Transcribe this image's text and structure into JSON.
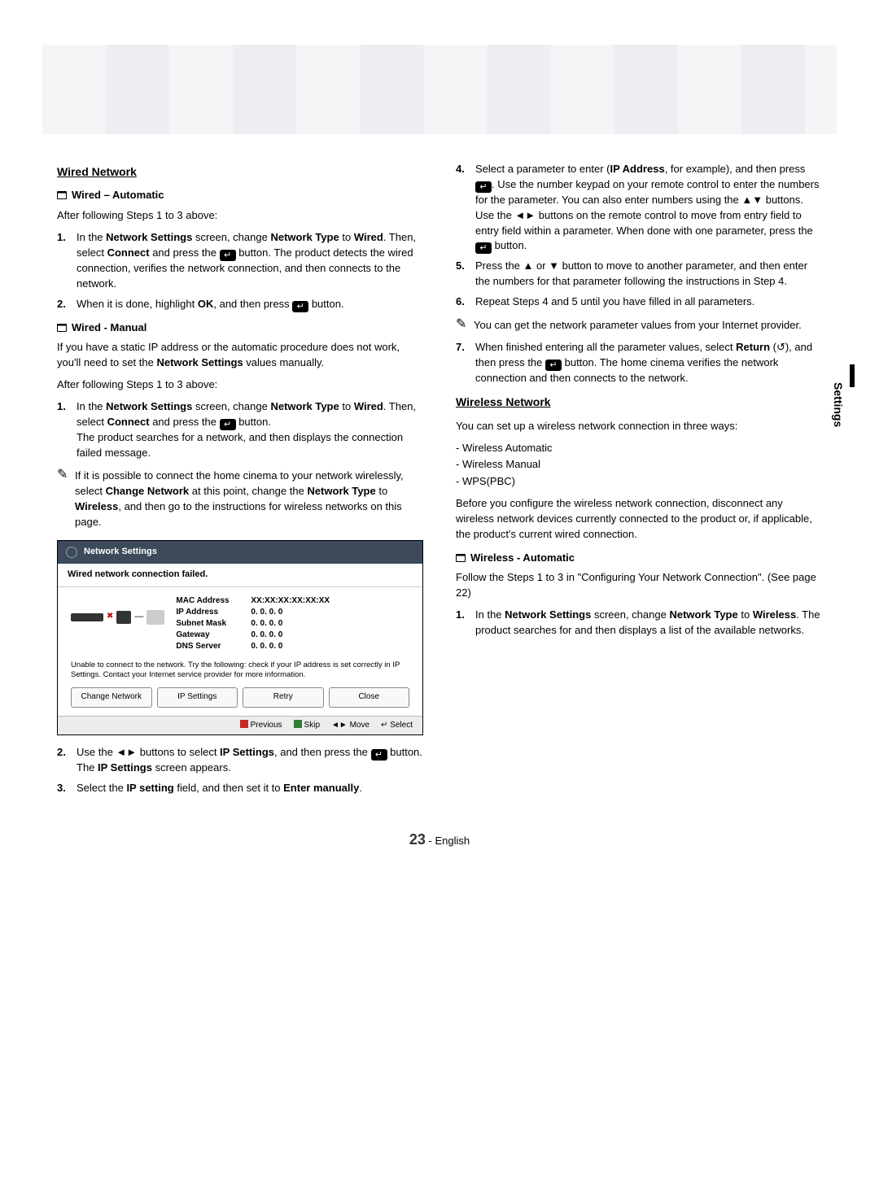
{
  "page": {
    "number": "23",
    "lang": "English"
  },
  "sideTab": "Settings",
  "left": {
    "wiredNetwork": "Wired Network",
    "wiredAuto": "Wired – Automatic",
    "autoIntro": "After following Steps 1 to 3 above:",
    "autoStep1_a": "In the ",
    "autoStep1_ns": "Network Settings",
    "autoStep1_b": " screen, change ",
    "autoStep1_nt": "Network Type",
    "autoStep1_c": " to ",
    "autoStep1_wired": "Wired",
    "autoStep1_d": ". Then, select ",
    "autoStep1_connect": "Connect",
    "autoStep1_e": " and press the ",
    "autoStep1_f": " button. The product detects the wired connection, verifies the network connection, and then connects to the network.",
    "autoStep2_a": "When it is done, highlight ",
    "autoStep2_ok": "OK",
    "autoStep2_b": ", and then press ",
    "autoStep2_c": " button.",
    "wiredManual": "Wired - Manual",
    "manIntro_a": "If you have a static IP address or the automatic procedure does not work, you'll need to set the ",
    "manIntro_ns": "Network Settings",
    "manIntro_b": " values manually.",
    "manFollow": "After following Steps 1 to 3 above:",
    "manStep1_a": "In the ",
    "manStep1_ns": "Network Settings",
    "manStep1_b": " screen, change ",
    "manStep1_nt": "Network Type",
    "manStep1_c": " to ",
    "manStep1_wired": "Wired",
    "manStep1_d": ". Then, select ",
    "manStep1_connect": "Connect",
    "manStep1_e": " and press the ",
    "manStep1_f": " button.\nThe product searches for a network, and then displays the connection failed message.",
    "manNote_a": "If it is possible to connect the home cinema to your network wirelessly, select ",
    "manNote_cn": "Change Network",
    "manNote_b": " at this point, change the ",
    "manNote_nt": "Network Type",
    "manNote_c": " to ",
    "manNote_wl": "Wireless",
    "manNote_d": ", and then go to the instructions for wireless networks on this page.",
    "step2_a": "Use the ◄► buttons to select ",
    "step2_ip": "IP Settings",
    "step2_b": ", and then press the ",
    "step2_c": " button. The ",
    "step2_ip2": "IP Settings",
    "step2_d": " screen appears.",
    "step3_a": "Select the ",
    "step3_ipset": "IP setting",
    "step3_b": " field, and then set it to ",
    "step3_em": "Enter manually",
    "step3_c": "."
  },
  "tv": {
    "title": "Network Settings",
    "status": "Wired network connection failed.",
    "rows": {
      "mac_l": "MAC Address",
      "mac_v": "XX:XX:XX:XX:XX:XX",
      "ip_l": "IP Address",
      "ip_v": "0.  0.  0.  0",
      "sm_l": "Subnet Mask",
      "sm_v": "0.  0.  0.  0",
      "gw_l": "Gateway",
      "gw_v": "0.  0.  0.  0",
      "dns_l": "DNS Server",
      "dns_v": "0.  0.  0.  0"
    },
    "msg": "Unable to connect to the network. Try the following: check if your IP address is set correctly in IP Settings. Contact your Internet service provider for more information.",
    "btn1": "Change Network",
    "btn2": "IP Settings",
    "btn3": "Retry",
    "btn4": "Close",
    "foot_prev": "Previous",
    "foot_skip": "Skip",
    "foot_move": "Move",
    "foot_select": "Select"
  },
  "right": {
    "step4_a": "Select a parameter to enter (",
    "step4_ip": "IP Address",
    "step4_b": ", for example), and then press ",
    "step4_c": ". Use the number keypad on your remote control to enter the numbers for the parameter. You can also enter numbers using the ▲▼ buttons. Use the ◄► buttons on the remote control to move from entry field to entry field within a parameter. When done with one parameter, press the ",
    "step4_d": " button.",
    "step5": "Press the ▲ or ▼ button to move to another parameter, and then enter the numbers for that parameter following the instructions in Step 4.",
    "step6": "Repeat Steps 4 and 5 until you have filled in all parameters.",
    "noteR": "You can get the network parameter values from your Internet provider.",
    "step7_a": "When finished entering all the parameter values, select ",
    "step7_ret": "Return",
    "step7_b": " (↺), and then press the ",
    "step7_c": " button. The home cinema verifies the network connection and then connects to the network.",
    "wirelessNetwork": "Wireless Network",
    "wnIntro": "You can set up a wireless network connection in three ways:",
    "wn1": "Wireless Automatic",
    "wn2": "Wireless Manual",
    "wn3": "WPS(PBC)",
    "wnBefore": "Before you configure the wireless network connection, disconnect any wireless network devices currently connected to the product or, if applicable, the product's current wired connection.",
    "wirelessAuto": "Wireless - Automatic",
    "waFollow": "Follow the Steps 1 to 3 in \"Configuring Your Network Connection\". (See page 22)",
    "waStep1_a": "In the ",
    "waStep1_ns": "Network Settings",
    "waStep1_b": " screen, change ",
    "waStep1_nt": "Network Type",
    "waStep1_c": " to ",
    "waStep1_wl": "Wireless",
    "waStep1_d": ". The product searches for and then displays a list of the available networks."
  }
}
